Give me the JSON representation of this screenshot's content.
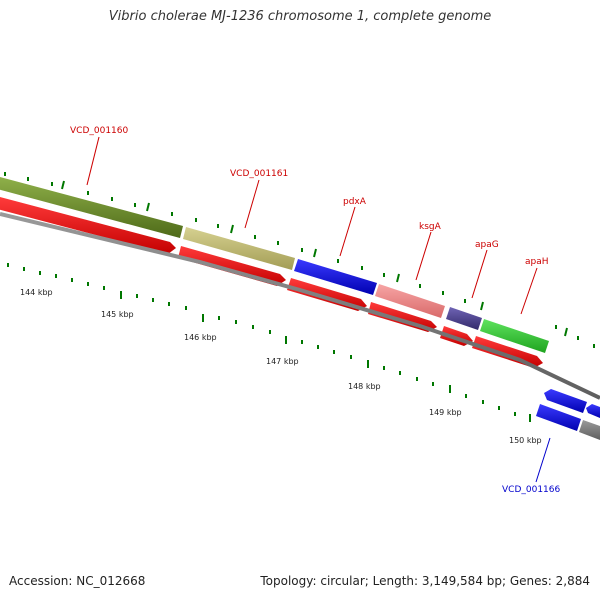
{
  "title": "Vibrio cholerae MJ-1236 chromosome 1, complete genome",
  "footer": {
    "accession": "Accession: NC_012668",
    "topology": "Topology: circular; Length: 3,149,584 bp; Genes: 2,884"
  },
  "colors": {
    "label_forward": "#cc0000",
    "label_reverse": "#0000cc",
    "tick": "#007700",
    "backbone": "#8a8a8a",
    "orf": "#ff0000"
  },
  "ticks": [
    "144 kbp",
    "145 kbp",
    "146 kbp",
    "147 kbp",
    "148 kbp",
    "149 kbp",
    "150 kbp"
  ],
  "gene_labels": [
    {
      "text": "VCD_001160",
      "strand": "forward"
    },
    {
      "text": "VCD_001161",
      "strand": "forward"
    },
    {
      "text": "pdxA",
      "strand": "forward"
    },
    {
      "text": "ksgA",
      "strand": "forward"
    },
    {
      "text": "apaG",
      "strand": "forward"
    },
    {
      "text": "apaH",
      "strand": "forward"
    },
    {
      "text": "VCD_001166",
      "strand": "reverse"
    }
  ],
  "genes": [
    {
      "name": "VCD_001160",
      "color": "#6b8e23"
    },
    {
      "name": "VCD_001161",
      "color": "#bdb76b"
    },
    {
      "name": "pdxA",
      "color": "#0000ff"
    },
    {
      "name": "ksgA",
      "color": "#f08080"
    },
    {
      "name": "apaG",
      "color": "#483d8b"
    },
    {
      "name": "apaH",
      "color": "#32cd32"
    },
    {
      "name": "VCD_001166",
      "color": "#0000ff"
    }
  ]
}
